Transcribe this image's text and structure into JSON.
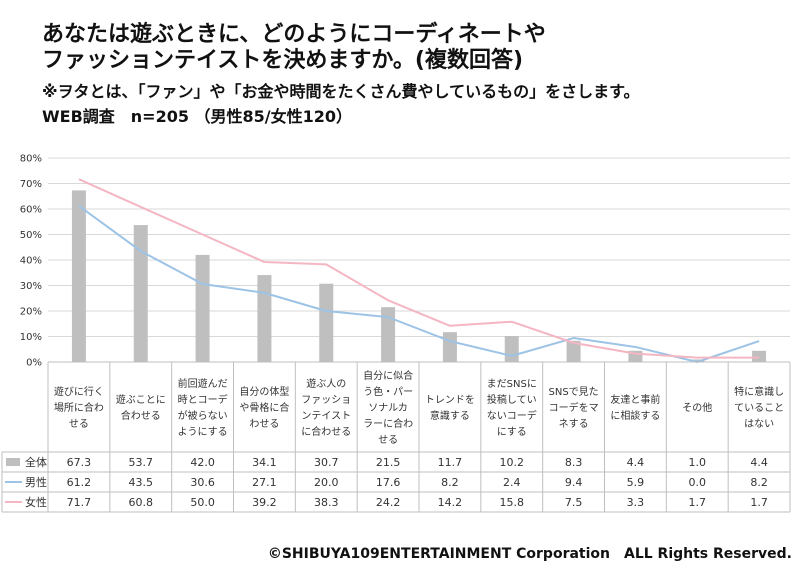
{
  "header": {
    "title_line1": "あなたは遊ぶときに、どのようにコーディネートや",
    "title_line2": "ファッションテイストを決めますか。(複数回答)",
    "note": "※ヲタとは、「ファン」や「お金や時間をたくさん費やしているもの」をさします。",
    "survey": "WEB調査　n=205 （男性85/女性120）"
  },
  "footer": "©SHIBUYA109ENTERTAINMENT Corporation　ALL Rights Reserved.",
  "colors": {
    "bar": "#bfbfbf",
    "male": "#9dc3e6",
    "female": "#f4b6c2",
    "grid": "#d9d9d9"
  },
  "chart_data": {
    "type": "bar",
    "ylim": [
      0,
      80
    ],
    "yticks": [
      "0%",
      "10%",
      "20%",
      "30%",
      "40%",
      "50%",
      "60%",
      "70%",
      "80%"
    ],
    "categories": [
      [
        "遊びに行く",
        "場所に合わ",
        "せる"
      ],
      [
        "遊ぶことに",
        "合わせる"
      ],
      [
        "前回遊んだ",
        "時とコーデ",
        "が被らない",
        "ようにする"
      ],
      [
        "自分の体型",
        "や骨格に合",
        "わせる"
      ],
      [
        "遊ぶ人の",
        "ファッショ",
        "ンテイスト",
        "に合わせる"
      ],
      [
        "自分に似合",
        "う色・パー",
        "ソナルカ",
        "ラーに合わ",
        "せる"
      ],
      [
        "トレンドを",
        "意識する"
      ],
      [
        "まだSNSに",
        "投稿してい",
        "ないコーデ",
        "にする"
      ],
      [
        "SNSで見た",
        "コーデをマ",
        "ネする"
      ],
      [
        "友達と事前",
        "に相談する"
      ],
      [
        "その他"
      ],
      [
        "特に意識し",
        "ていること",
        "はない"
      ]
    ],
    "series": [
      {
        "name": "全体",
        "type": "bar",
        "values": [
          67.3,
          53.7,
          42.0,
          34.1,
          30.7,
          21.5,
          11.7,
          10.2,
          8.3,
          4.4,
          1.0,
          4.4
        ],
        "labels": [
          "67.3",
          "53.7",
          "42.0",
          "34.1",
          "30.7",
          "21.5",
          "11.7",
          "10.2",
          "8.3",
          "4.4",
          "1.0",
          "4.4"
        ]
      },
      {
        "name": "男性",
        "type": "line",
        "values": [
          61.2,
          43.5,
          30.6,
          27.1,
          20.0,
          17.6,
          8.2,
          2.4,
          9.4,
          5.9,
          0.0,
          8.2
        ],
        "labels": [
          "61.2",
          "43.5",
          "30.6",
          "27.1",
          "20.0",
          "17.6",
          "8.2",
          "2.4",
          "9.4",
          "5.9",
          "0.0",
          "8.2"
        ]
      },
      {
        "name": "女性",
        "type": "line",
        "values": [
          71.7,
          60.8,
          50.0,
          39.2,
          38.3,
          24.2,
          14.2,
          15.8,
          7.5,
          3.3,
          1.7,
          1.7
        ],
        "labels": [
          "71.7",
          "60.8",
          "50.0",
          "39.2",
          "38.3",
          "24.2",
          "14.2",
          "15.8",
          "7.5",
          "3.3",
          "1.7",
          "1.7"
        ]
      }
    ],
    "grid": true,
    "legend": "data-table"
  }
}
